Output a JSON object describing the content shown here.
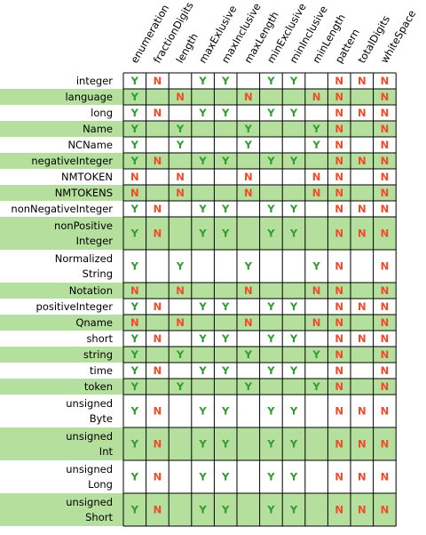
{
  "columns": [
    "enumeration",
    "fractionDigits",
    "length",
    "maxExlusive",
    "maxInclusive",
    "maxLength",
    "minExclusive",
    "minInclusive",
    "minLength",
    "pattern",
    "totalDigits",
    "whiteSpace"
  ],
  "colors": {
    "yes": "#2e9c2e",
    "no": "#f04a2a",
    "band": "#b5df9c",
    "border": "#000000",
    "white": "#ffffff"
  },
  "rows": [
    {
      "label": [
        "integer"
      ],
      "cells": [
        "Y",
        "N",
        "",
        "Y",
        "Y",
        "",
        "Y",
        "Y",
        "",
        "N",
        "N",
        "N"
      ]
    },
    {
      "label": [
        "language"
      ],
      "cells": [
        "Y",
        "",
        "N",
        "",
        "",
        "N",
        "",
        "",
        "N",
        "N",
        "",
        "N"
      ]
    },
    {
      "label": [
        "long"
      ],
      "cells": [
        "Y",
        "N",
        "",
        "Y",
        "Y",
        "",
        "Y",
        "Y",
        "",
        "N",
        "N",
        "N"
      ]
    },
    {
      "label": [
        "Name"
      ],
      "cells": [
        "Y",
        "",
        "Y",
        "",
        "",
        "Y",
        "",
        "",
        "Y",
        "N",
        "",
        "N"
      ]
    },
    {
      "label": [
        "NCName"
      ],
      "cells": [
        "Y",
        "",
        "Y",
        "",
        "",
        "Y",
        "",
        "",
        "Y",
        "N",
        "",
        "N"
      ]
    },
    {
      "label": [
        "negativeInteger"
      ],
      "cells": [
        "Y",
        "N",
        "",
        "Y",
        "Y",
        "",
        "Y",
        "Y",
        "",
        "N",
        "N",
        "N"
      ]
    },
    {
      "label": [
        "NMTOKEN"
      ],
      "cells": [
        "N",
        "",
        "N",
        "",
        "",
        "N",
        "",
        "",
        "N",
        "N",
        "",
        "N"
      ]
    },
    {
      "label": [
        "NMTOKENS"
      ],
      "cells": [
        "N",
        "",
        "N",
        "",
        "",
        "N",
        "",
        "",
        "N",
        "N",
        "",
        "N"
      ]
    },
    {
      "label": [
        "nonNegativeInteger"
      ],
      "cells": [
        "Y",
        "N",
        "",
        "Y",
        "Y",
        "",
        "Y",
        "Y",
        "",
        "N",
        "N",
        "N"
      ]
    },
    {
      "label": [
        "nonPositive",
        "Integer"
      ],
      "cells": [
        "Y",
        "N",
        "",
        "Y",
        "Y",
        "",
        "Y",
        "Y",
        "",
        "N",
        "N",
        "N"
      ]
    },
    {
      "label": [
        "Normalized",
        "String"
      ],
      "cells": [
        "Y",
        "",
        "Y",
        "",
        "",
        "Y",
        "",
        "",
        "Y",
        "N",
        "",
        "N"
      ]
    },
    {
      "label": [
        "Notation"
      ],
      "cells": [
        "N",
        "",
        "N",
        "",
        "",
        "N",
        "",
        "",
        "N",
        "N",
        "",
        "N"
      ]
    },
    {
      "label": [
        "positiveInteger"
      ],
      "cells": [
        "Y",
        "N",
        "",
        "Y",
        "Y",
        "",
        "Y",
        "Y",
        "",
        "N",
        "N",
        "N"
      ]
    },
    {
      "label": [
        "Qname"
      ],
      "cells": [
        "N",
        "",
        "N",
        "",
        "",
        "N",
        "",
        "",
        "N",
        "N",
        "",
        "N"
      ]
    },
    {
      "label": [
        "short"
      ],
      "cells": [
        "Y",
        "N",
        "",
        "Y",
        "Y",
        "",
        "Y",
        "Y",
        "",
        "N",
        "N",
        "N"
      ]
    },
    {
      "label": [
        "string"
      ],
      "cells": [
        "Y",
        "",
        "Y",
        "",
        "",
        "Y",
        "",
        "",
        "Y",
        "N",
        "",
        "N"
      ]
    },
    {
      "label": [
        "time"
      ],
      "cells": [
        "Y",
        "N",
        "",
        "Y",
        "Y",
        "",
        "Y",
        "Y",
        "",
        "N",
        "",
        "N"
      ]
    },
    {
      "label": [
        "token"
      ],
      "cells": [
        "Y",
        "",
        "Y",
        "",
        "",
        "Y",
        "",
        "",
        "Y",
        "N",
        "",
        "N"
      ]
    },
    {
      "label": [
        "unsigned",
        "Byte"
      ],
      "cells": [
        "Y",
        "N",
        "",
        "Y",
        "Y",
        "",
        "Y",
        "Y",
        "",
        "N",
        "N",
        "N"
      ]
    },
    {
      "label": [
        "unsigned",
        "Int"
      ],
      "cells": [
        "Y",
        "N",
        "",
        "Y",
        "Y",
        "",
        "Y",
        "Y",
        "",
        "N",
        "N",
        "N"
      ]
    },
    {
      "label": [
        "unsigned",
        "Long"
      ],
      "cells": [
        "Y",
        "N",
        "",
        "Y",
        "Y",
        "",
        "Y",
        "Y",
        "",
        "N",
        "N",
        "N"
      ]
    },
    {
      "label": [
        "unsigned",
        "Short"
      ],
      "cells": [
        "Y",
        "N",
        "",
        "Y",
        "Y",
        "",
        "Y",
        "Y",
        "",
        "N",
        "N",
        "N"
      ]
    }
  ]
}
